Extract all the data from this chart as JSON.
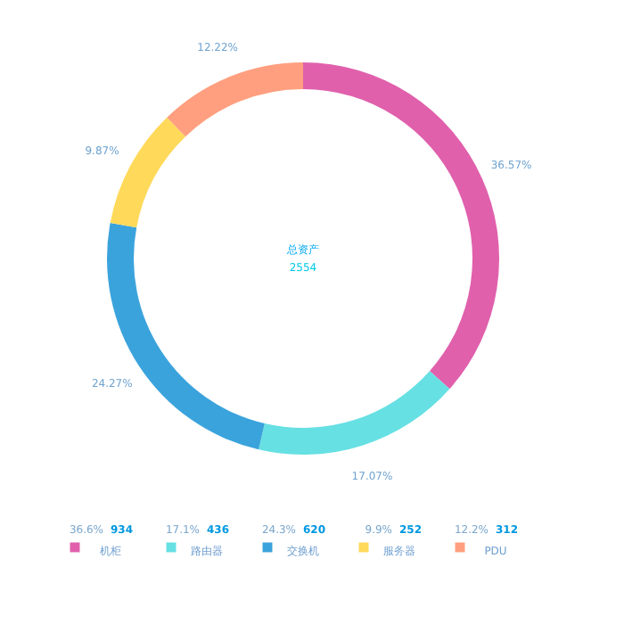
{
  "chart_data": {
    "type": "donut",
    "categories": [
      "机柜",
      "路由器",
      "交换机",
      "服务器",
      "PDU"
    ],
    "values": [
      934,
      436,
      620,
      252,
      312
    ],
    "colors": [
      "#e060ac",
      "#66e0e3",
      "#3ba3dc",
      "#ffd95a",
      "#ff9f7f"
    ],
    "data_labels": true,
    "annotations": [
      "总资产",
      "2554",
      {
        "text": "36.57%",
        "x": "机柜"
      },
      {
        "text": "17.07%",
        "x": "路由器"
      },
      {
        "text": "24.27%",
        "x": "交换机"
      },
      {
        "text": "9.87%",
        "x": "服务器"
      },
      {
        "text": "12.22%",
        "x": "PDU"
      },
      "36.6%",
      "17.1%",
      "24.3%",
      "9.9%",
      "12.2%"
    ],
    "legend": "bottom"
  }
}
